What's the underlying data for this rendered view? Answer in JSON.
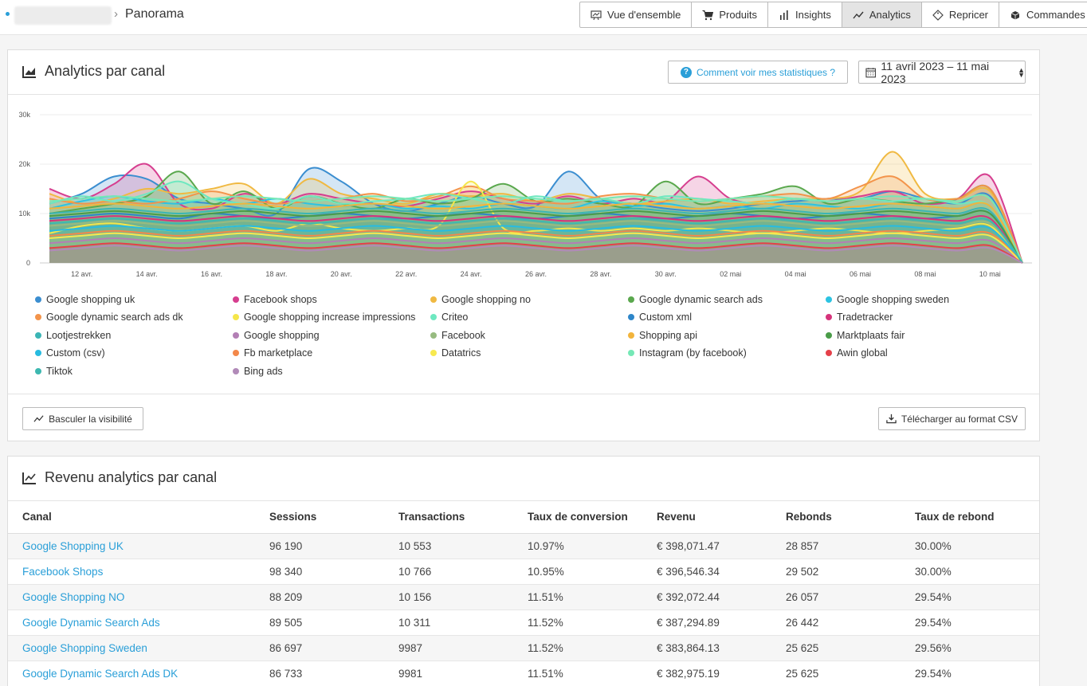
{
  "breadcrumb": {
    "title": "Panorama"
  },
  "nav": [
    {
      "label": "Vue d'ensemble",
      "icon": "presentation-icon",
      "active": false
    },
    {
      "label": "Produits",
      "icon": "cart-icon",
      "active": false
    },
    {
      "label": "Insights",
      "icon": "bar-chart-icon",
      "active": false
    },
    {
      "label": "Analytics",
      "icon": "line-chart-icon",
      "active": true
    },
    {
      "label": "Repricer",
      "icon": "tag-icon",
      "active": false
    },
    {
      "label": "Commandes",
      "icon": "box-icon",
      "active": false
    }
  ],
  "analytics": {
    "title": "Analytics par canal",
    "help_label": "Comment voir mes statistiques ?",
    "date_range": "11 avril 2023 – 11 mai 2023",
    "toggle_label": "Basculer la visibilité",
    "csv_label": "Télécharger au format CSV"
  },
  "chart_data": {
    "type": "area",
    "y_ticks": [
      "0",
      "10k",
      "20k",
      "30k"
    ],
    "ylim": [
      0,
      30000
    ],
    "x_ticks": [
      "12 avr.",
      "14 avr.",
      "16 avr.",
      "18 avr.",
      "20 avr.",
      "22 avr.",
      "24 avr.",
      "26 avr.",
      "28 avr.",
      "30 avr.",
      "02 mai",
      "04 mai",
      "06 mai",
      "08 mai",
      "10 mai"
    ],
    "dates": [
      "11 avr.",
      "12 avr.",
      "13 avr.",
      "14 avr.",
      "15 avr.",
      "16 avr.",
      "17 avr.",
      "18 avr.",
      "19 avr.",
      "20 avr.",
      "21 avr.",
      "22 avr.",
      "23 avr.",
      "24 avr.",
      "25 avr.",
      "26 avr.",
      "27 avr.",
      "28 avr.",
      "29 avr.",
      "30 avr.",
      "01 mai",
      "02 mai",
      "03 mai",
      "04 mai",
      "05 mai",
      "06 mai",
      "07 mai",
      "08 mai",
      "09 mai",
      "10 mai",
      "11 mai"
    ],
    "grid": true,
    "series": [
      {
        "name": "Google shopping uk",
        "color": "#3b8ed0",
        "values": [
          12000,
          14000,
          17500,
          17000,
          13000,
          12000,
          11000,
          10000,
          19000,
          16500,
          12000,
          10500,
          12000,
          13500,
          12000,
          11500,
          18500,
          13000,
          12000,
          11000,
          10500,
          11000,
          12000,
          12500,
          13000,
          13000,
          14500,
          13000,
          12000,
          13500,
          0
        ]
      },
      {
        "name": "Facebook shops",
        "color": "#d63e8f",
        "values": [
          15000,
          13000,
          16000,
          20000,
          12000,
          11000,
          14000,
          12000,
          14000,
          13000,
          12000,
          11500,
          13000,
          14500,
          13000,
          12000,
          13500,
          12000,
          13000,
          12500,
          17500,
          13000,
          12000,
          13000,
          12500,
          13500,
          14500,
          12000,
          13000,
          17500,
          0
        ]
      },
      {
        "name": "Google shopping no",
        "color": "#f0b942",
        "values": [
          14000,
          12000,
          13000,
          15000,
          14000,
          15000,
          16000,
          12000,
          17000,
          14000,
          13000,
          12000,
          14000,
          13500,
          14000,
          12500,
          14000,
          13000,
          12000,
          12500,
          13000,
          12000,
          12500,
          13000,
          13000,
          14500,
          22500,
          14000,
          13000,
          14500,
          0
        ]
      },
      {
        "name": "Google dynamic search ads",
        "color": "#5aa84d",
        "values": [
          10000,
          11000,
          12000,
          13500,
          18500,
          12000,
          14500,
          11000,
          13500,
          12000,
          11000,
          13000,
          12000,
          13000,
          16000,
          12500,
          13000,
          12000,
          11500,
          16500,
          12000,
          13000,
          14000,
          15500,
          12000,
          13000,
          12500,
          12000,
          13000,
          15000,
          0
        ]
      },
      {
        "name": "Google shopping sweden",
        "color": "#2cc3e2",
        "values": [
          11000,
          12500,
          13500,
          12500,
          12000,
          13000,
          12000,
          13000,
          12000,
          11500,
          12000,
          11000,
          11500,
          11000,
          12000,
          11500,
          11000,
          12500,
          11500,
          12000,
          11000,
          11500,
          11000,
          12000,
          11500,
          11000,
          12000,
          11500,
          11000,
          11500,
          0
        ]
      },
      {
        "name": "Google dynamic search ads dk",
        "color": "#f3944b",
        "values": [
          13000,
          12000,
          12500,
          12000,
          13000,
          14500,
          13000,
          12000,
          12500,
          13000,
          14000,
          12500,
          13500,
          15500,
          13000,
          12500,
          12000,
          13500,
          14000,
          13000,
          12500,
          13000,
          13500,
          14000,
          13000,
          15500,
          17500,
          13000,
          13000,
          15000,
          0
        ]
      },
      {
        "name": "Google shopping increase impressions",
        "color": "#f5e64a",
        "values": [
          6000,
          7500,
          8000,
          7000,
          6500,
          7000,
          7500,
          6500,
          8000,
          7000,
          6500,
          7000,
          7500,
          16500,
          7000,
          6500,
          7000,
          6500,
          7000,
          6500,
          7000,
          6500,
          6000,
          6500,
          7000,
          6500,
          6000,
          6500,
          7000,
          7500,
          0
        ]
      },
      {
        "name": "Criteo",
        "color": "#6ee8c0",
        "values": [
          12000,
          13500,
          12500,
          14000,
          16500,
          13000,
          12000,
          11000,
          13500,
          12000,
          12500,
          13000,
          14000,
          13000,
          12000,
          13500,
          12500,
          13000,
          12000,
          13500,
          13000,
          12500,
          12000,
          13000,
          12500,
          13000,
          12500,
          13000,
          12000,
          11500,
          0
        ]
      },
      {
        "name": "Custom xml",
        "color": "#2e86c9",
        "values": [
          9000,
          9500,
          10000,
          9500,
          9000,
          10000,
          9500,
          9000,
          9500,
          10000,
          9500,
          9000,
          9500,
          10000,
          9500,
          9000,
          9500,
          10000,
          9500,
          9000,
          9500,
          10000,
          9500,
          9000,
          9500,
          10000,
          9500,
          9000,
          9500,
          10000,
          0
        ]
      },
      {
        "name": "Tradetracker",
        "color": "#d6337b",
        "values": [
          8500,
          9000,
          9500,
          9000,
          8500,
          9000,
          9500,
          9000,
          8500,
          9000,
          9500,
          9000,
          8500,
          9000,
          9500,
          9000,
          8500,
          9000,
          9500,
          9000,
          8500,
          9000,
          9500,
          9000,
          8500,
          9000,
          9500,
          9000,
          8500,
          9000,
          0
        ]
      },
      {
        "name": "Lootjestrekken",
        "color": "#3bb5b5",
        "values": [
          10000,
          10500,
          11000,
          10500,
          10000,
          10500,
          11000,
          10500,
          10000,
          10500,
          11000,
          10500,
          10000,
          10500,
          11000,
          10500,
          10000,
          10500,
          11000,
          10500,
          10000,
          10500,
          11000,
          10500,
          10000,
          10500,
          11000,
          10500,
          10000,
          10500,
          0
        ]
      },
      {
        "name": "Google shopping",
        "color": "#b37fb5",
        "values": [
          4000,
          4500,
          5000,
          4500,
          4000,
          4500,
          5000,
          4500,
          4000,
          4500,
          5000,
          4500,
          4000,
          4500,
          5000,
          4500,
          4000,
          4500,
          5000,
          4500,
          4000,
          4500,
          5000,
          4500,
          4000,
          4500,
          5000,
          4500,
          4000,
          4500,
          0
        ]
      },
      {
        "name": "Facebook",
        "color": "#97bb80",
        "values": [
          7500,
          8000,
          8500,
          8000,
          7500,
          8000,
          8500,
          8000,
          7500,
          8000,
          8500,
          8000,
          7500,
          8000,
          8500,
          8000,
          7500,
          8000,
          8500,
          8000,
          7500,
          8000,
          8500,
          8000,
          7500,
          8000,
          8500,
          8000,
          7500,
          8000,
          0
        ]
      },
      {
        "name": "Shopping api",
        "color": "#f2b43c",
        "values": [
          11000,
          11500,
          12000,
          11500,
          11000,
          11500,
          12000,
          11500,
          11000,
          11500,
          12000,
          11500,
          11000,
          11500,
          12000,
          11500,
          11000,
          11500,
          12000,
          11500,
          11000,
          11500,
          12000,
          11500,
          11000,
          11500,
          12000,
          11500,
          11000,
          11500,
          0
        ]
      },
      {
        "name": "Marktplaats fair",
        "color": "#4a9c48",
        "values": [
          9500,
          10000,
          10500,
          10000,
          9500,
          10000,
          10500,
          10000,
          9500,
          10000,
          10500,
          10000,
          9500,
          10000,
          10500,
          10000,
          9500,
          10000,
          10500,
          10000,
          9500,
          10000,
          10500,
          10000,
          9500,
          10000,
          10500,
          10000,
          9500,
          10000,
          0
        ]
      },
      {
        "name": "Custom (csv)",
        "color": "#27bbe0",
        "values": [
          6500,
          7000,
          7500,
          7000,
          6500,
          7000,
          7500,
          7000,
          6500,
          7000,
          7500,
          7000,
          6500,
          7000,
          7500,
          7000,
          6500,
          7000,
          7500,
          7000,
          6500,
          7000,
          7500,
          7000,
          6500,
          7000,
          7500,
          7000,
          6500,
          7000,
          0
        ]
      },
      {
        "name": "Fb marketplace",
        "color": "#f3884a",
        "values": [
          5500,
          6000,
          6500,
          6000,
          5500,
          6000,
          6500,
          6000,
          5500,
          6000,
          6500,
          6000,
          5500,
          6000,
          6500,
          6000,
          5500,
          6000,
          6500,
          6000,
          5500,
          6000,
          6500,
          6000,
          5500,
          6000,
          6500,
          6000,
          5500,
          6000,
          0
        ]
      },
      {
        "name": "Datatrics",
        "color": "#f7e94f",
        "values": [
          5000,
          5500,
          6000,
          5500,
          5000,
          5500,
          6000,
          5500,
          5000,
          5500,
          6000,
          5500,
          5000,
          5500,
          6000,
          5500,
          5000,
          5500,
          6000,
          5500,
          5000,
          5500,
          6000,
          5500,
          5000,
          5500,
          6000,
          5500,
          5000,
          5500,
          0
        ]
      },
      {
        "name": "Instagram (by facebook)",
        "color": "#75e8b6",
        "values": [
          12500,
          13000,
          13500,
          13000,
          12500,
          13000,
          13500,
          13000,
          12500,
          13000,
          13500,
          13000,
          12500,
          13000,
          13500,
          13000,
          12500,
          13000,
          13500,
          13000,
          12500,
          13000,
          13500,
          13000,
          12500,
          13000,
          13500,
          13000,
          12500,
          13000,
          0
        ]
      },
      {
        "name": "Awin global",
        "color": "#e5404a",
        "values": [
          3000,
          3500,
          4000,
          3500,
          3000,
          3500,
          4000,
          3500,
          3000,
          3500,
          4000,
          3500,
          3000,
          3500,
          4000,
          3500,
          3000,
          3500,
          4000,
          3500,
          3000,
          3500,
          4000,
          3500,
          3000,
          3500,
          4000,
          3500,
          3000,
          3500,
          0
        ]
      },
      {
        "name": "Tiktok",
        "color": "#3db8b0",
        "values": [
          8000,
          8500,
          9000,
          8500,
          8000,
          8500,
          9000,
          8500,
          8000,
          8500,
          9000,
          8500,
          8000,
          8500,
          9000,
          8500,
          8000,
          8500,
          9000,
          8500,
          8000,
          8500,
          9000,
          8500,
          8000,
          8500,
          9000,
          8500,
          8000,
          8500,
          0
        ]
      },
      {
        "name": "Bing ads",
        "color": "#b18ab8",
        "values": [
          2500,
          3000,
          3500,
          3000,
          2500,
          3000,
          3500,
          3000,
          2500,
          3000,
          3500,
          3000,
          2500,
          3000,
          3500,
          3000,
          2500,
          3000,
          3500,
          3000,
          2500,
          3000,
          3500,
          3000,
          2500,
          3000,
          3500,
          3000,
          2500,
          3000,
          0
        ]
      }
    ]
  },
  "revenue": {
    "title": "Revenu analytics par canal",
    "columns": [
      "Canal",
      "Sessions",
      "Transactions",
      "Taux de conversion",
      "Revenu",
      "Rebonds",
      "Taux de rebond"
    ],
    "rows": [
      [
        "Google Shopping UK",
        "96 190",
        "10 553",
        "10.97%",
        "€ 398,071.47",
        "28 857",
        "30.00%"
      ],
      [
        "Facebook Shops",
        "98 340",
        "10 766",
        "10.95%",
        "€ 396,546.34",
        "29 502",
        "30.00%"
      ],
      [
        "Google Shopping NO",
        "88 209",
        "10 156",
        "11.51%",
        "€ 392,072.44",
        "26 057",
        "29.54%"
      ],
      [
        "Google Dynamic Search Ads",
        "89 505",
        "10 311",
        "11.52%",
        "€ 387,294.89",
        "26 442",
        "29.54%"
      ],
      [
        "Google Shopping Sweden",
        "86 697",
        "9987",
        "11.52%",
        "€ 383,864.13",
        "25 625",
        "29.56%"
      ],
      [
        "Google Dynamic Search Ads DK",
        "86 733",
        "9981",
        "11.51%",
        "€ 382,975.19",
        "25 625",
        "29.54%"
      ]
    ]
  }
}
